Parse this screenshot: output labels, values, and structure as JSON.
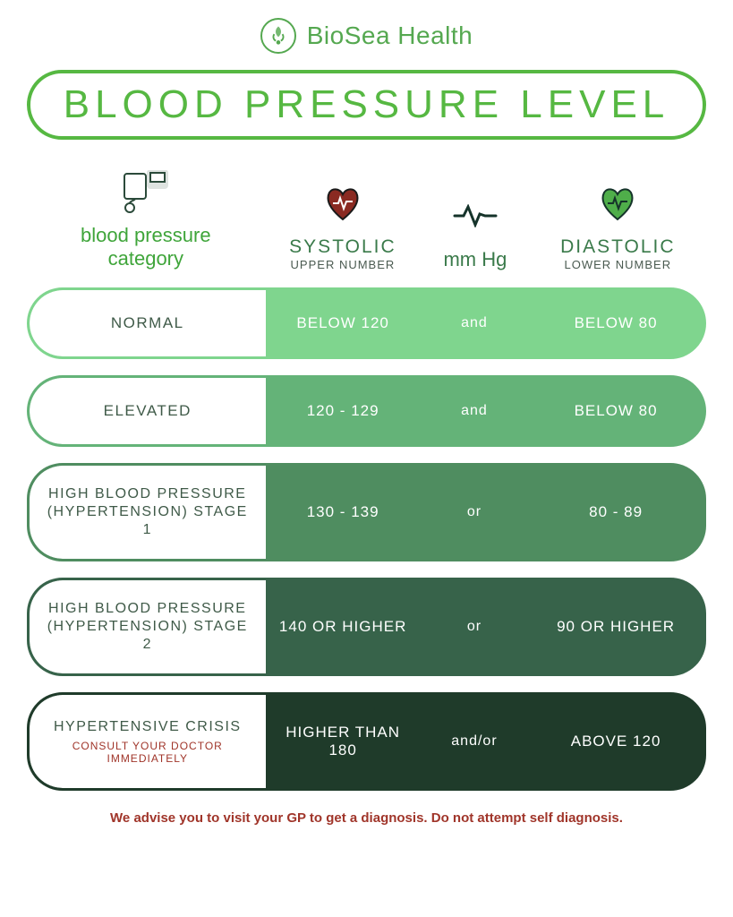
{
  "brand": {
    "name": "BioSea Health",
    "color": "#55a850"
  },
  "title": {
    "text": "BLOOD PRESSURE LEVEL",
    "border_color": "#56b842",
    "text_color": "#56b842"
  },
  "columns": {
    "category": {
      "title": "blood pressure category",
      "title_line1": "blood pressure",
      "title_line2": "category"
    },
    "systolic": {
      "title": "SYSTOLIC",
      "sub": "UPPER NUMBER"
    },
    "mmhg": {
      "title": "mm Hg"
    },
    "diastolic": {
      "title": "DIASTOLIC",
      "sub": "LOWER NUMBER"
    }
  },
  "rows": [
    {
      "category": "NORMAL",
      "warning": "",
      "systolic": "BELOW 120",
      "conj": "and",
      "diastolic": "BELOW 80",
      "bg_color": "#7fd58e",
      "border_color": "#7fd58e",
      "tall": false
    },
    {
      "category": "ELEVATED",
      "warning": "",
      "systolic": "120 - 129",
      "conj": "and",
      "diastolic": "BELOW 80",
      "bg_color": "#64b378",
      "border_color": "#64b378",
      "tall": false
    },
    {
      "category": "HIGH BLOOD PRESSURE (HYPERTENSION) STAGE 1",
      "warning": "",
      "systolic": "130 - 139",
      "conj": "or",
      "diastolic": "80 - 89",
      "bg_color": "#4f8d60",
      "border_color": "#4f8d60",
      "tall": true
    },
    {
      "category": "HIGH BLOOD PRESSURE (HYPERTENSION) STAGE 2",
      "warning": "",
      "systolic": "140 OR HIGHER",
      "conj": "or",
      "diastolic": "90 OR HIGHER",
      "bg_color": "#37634a",
      "border_color": "#37634a",
      "tall": true
    },
    {
      "category": "HYPERTENSIVE CRISIS",
      "warning": "CONSULT YOUR DOCTOR IMMEDIATELY",
      "systolic": "HIGHER THAN 180",
      "conj": "and/or",
      "diastolic": "ABOVE 120",
      "bg_color": "#1f3b2a",
      "border_color": "#1f3b2a",
      "tall": true
    }
  ],
  "footer": "We advise you to visit your GP to get a diagnosis. Do not attempt self diagnosis.",
  "colors": {
    "category_text": "#3f5a48",
    "warning_text": "#a0352a",
    "footer_text": "#a0352a",
    "header_green": "#3a7a4a",
    "header_light_green": "#3fa53a"
  }
}
